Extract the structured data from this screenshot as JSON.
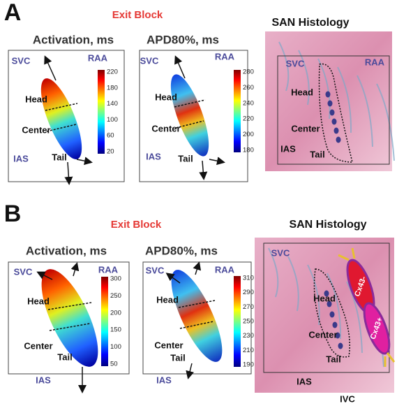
{
  "panels": [
    {
      "label": "A",
      "exit_block": "Exit Block",
      "maps": [
        {
          "title": "Activation, ms",
          "regions": [
            "SVC",
            "RAA",
            "Head",
            "Center",
            "IAS",
            "Tail"
          ],
          "colorbar_ticks": [
            220,
            180,
            140,
            100,
            60,
            20
          ]
        },
        {
          "title": "APD80%, ms",
          "regions": [
            "SVC",
            "RAA",
            "Head",
            "Center",
            "IAS",
            "Tail"
          ],
          "colorbar_ticks": [
            280,
            260,
            240,
            220,
            200,
            180
          ]
        }
      ],
      "histology": {
        "title": "SAN Histology",
        "regions": [
          "SVC",
          "RAA",
          "Head",
          "Center",
          "IAS",
          "Tail"
        ]
      }
    },
    {
      "label": "B",
      "exit_block": "Exit Block",
      "maps": [
        {
          "title": "Activation, ms",
          "regions": [
            "SVC",
            "RAA",
            "Head",
            "Center",
            "Tail",
            "IAS"
          ],
          "colorbar_ticks": [
            300,
            250,
            200,
            150,
            100,
            50
          ]
        },
        {
          "title": "APD80%, ms",
          "regions": [
            "SVC",
            "RAA",
            "Head",
            "Center",
            "Tail",
            "IAS"
          ],
          "colorbar_ticks": [
            310,
            290,
            270,
            250,
            230,
            210,
            190
          ]
        }
      ],
      "histology": {
        "title": "SAN Histology",
        "regions": [
          "SVC",
          "Head",
          "Center",
          "Tail",
          "IAS",
          "IVC"
        ],
        "cell_labels": [
          "Cx43-",
          "Cx43+"
        ]
      }
    }
  ]
}
